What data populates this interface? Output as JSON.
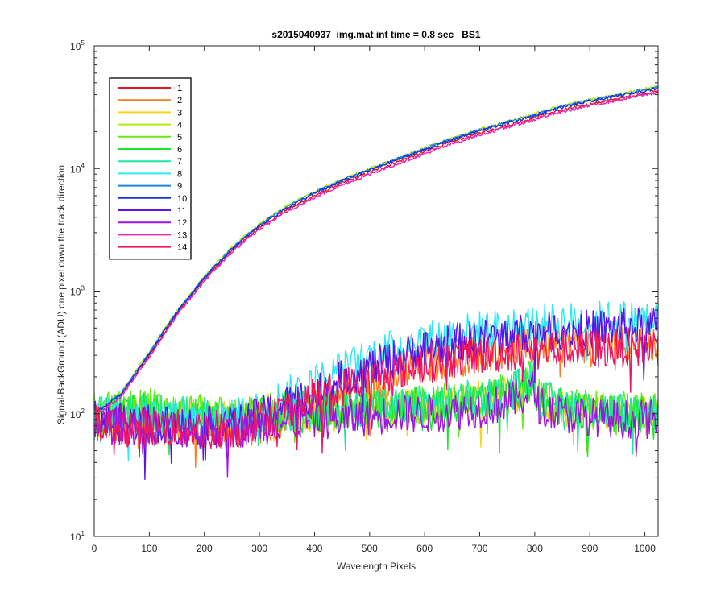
{
  "chart_data": {
    "type": "line",
    "title": "s2015040937_img.mat int time = 0.8 sec   BS1",
    "xlabel": "Wavelength Pixels",
    "ylabel": "Signal-BackGround (ADU) one pixel down the track direction",
    "xlim": [
      0,
      1024
    ],
    "ylim": [
      10,
      100000
    ],
    "yscale": "log",
    "grid": false,
    "legend_position": "top-left",
    "x_ticks": [
      0,
      100,
      200,
      300,
      400,
      500,
      600,
      700,
      800,
      900,
      1000
    ],
    "y_ticks": [
      {
        "value": 10,
        "base": "10",
        "exp": "1"
      },
      {
        "value": 100,
        "base": "10",
        "exp": "2"
      },
      {
        "value": 1000,
        "base": "10",
        "exp": "3"
      },
      {
        "value": 10000,
        "base": "10",
        "exp": "4"
      },
      {
        "value": 100000,
        "base": "10",
        "exp": "5"
      }
    ],
    "x": [
      0,
      50,
      100,
      150,
      200,
      250,
      300,
      350,
      400,
      450,
      500,
      550,
      600,
      650,
      700,
      750,
      780,
      795,
      800,
      810,
      850,
      900,
      950,
      1000,
      1024
    ],
    "series": [
      {
        "name": "1",
        "color": "#e8141e",
        "values": [
          100,
          145,
          300,
          650,
          1250,
          2150,
          3300,
          4600,
          6000,
          7600,
          9300,
          11300,
          13700,
          16500,
          19500,
          22500,
          24500,
          25500,
          26000,
          27000,
          30000,
          33500,
          37000,
          41000,
          42500
        ]
      },
      {
        "name": "2",
        "color": "#ff7f1f",
        "values": [
          95,
          85,
          80,
          78,
          76,
          75,
          80,
          95,
          115,
          140,
          170,
          205,
          245,
          280,
          310,
          335,
          345,
          345,
          350,
          355,
          365,
          370,
          375,
          380,
          380
        ]
      },
      {
        "name": "3",
        "color": "#ffd21a",
        "values": [
          90,
          95,
          100,
          95,
          95,
          90,
          100,
          105,
          100,
          105,
          110,
          110,
          110,
          120,
          130,
          140,
          155,
          185,
          165,
          120,
          110,
          100,
          100,
          95,
          95
        ]
      },
      {
        "name": "4",
        "color": "#b0ea14",
        "values": [
          100,
          150,
          320,
          690,
          1320,
          2280,
          3520,
          4950,
          6450,
          8150,
          10000,
          12100,
          14700,
          17700,
          20900,
          24100,
          26200,
          27300,
          27900,
          29000,
          32500,
          36300,
          40100,
          44500,
          46500
        ]
      },
      {
        "name": "5",
        "color": "#66e81a",
        "values": [
          105,
          110,
          115,
          100,
          100,
          95,
          100,
          105,
          105,
          110,
          115,
          115,
          120,
          125,
          135,
          150,
          165,
          200,
          175,
          130,
          120,
          110,
          105,
          105,
          105
        ]
      },
      {
        "name": "6",
        "color": "#1ee62a",
        "values": [
          95,
          100,
          105,
          95,
          95,
          90,
          95,
          100,
          100,
          105,
          110,
          110,
          115,
          120,
          130,
          145,
          160,
          190,
          170,
          125,
          115,
          105,
          100,
          100,
          100
        ]
      },
      {
        "name": "7",
        "color": "#1ee8a0",
        "values": [
          100,
          100,
          100,
          95,
          95,
          95,
          100,
          105,
          105,
          110,
          115,
          115,
          120,
          125,
          135,
          150,
          170,
          215,
          180,
          130,
          120,
          110,
          105,
          105,
          105
        ]
      },
      {
        "name": "8",
        "color": "#2ee8f0",
        "values": [
          100,
          95,
          90,
          85,
          85,
          90,
          110,
          140,
          180,
          230,
          290,
          350,
          400,
          440,
          480,
          510,
          530,
          540,
          545,
          550,
          560,
          575,
          585,
          590,
          595
        ]
      },
      {
        "name": "9",
        "color": "#1e84d8",
        "values": [
          100,
          148,
          315,
          680,
          1300,
          2240,
          3460,
          4870,
          6350,
          8030,
          9850,
          11950,
          14500,
          17450,
          20600,
          23800,
          25800,
          26900,
          27500,
          28600,
          32000,
          35800,
          39500,
          43800,
          45800
        ]
      },
      {
        "name": "10",
        "color": "#1430e8",
        "values": [
          100,
          146,
          310,
          670,
          1285,
          2210,
          3410,
          4800,
          6260,
          7920,
          9720,
          11800,
          14300,
          17200,
          20300,
          23500,
          25500,
          26600,
          27100,
          28200,
          31600,
          35300,
          39000,
          43300,
          45200
        ]
      },
      {
        "name": "11",
        "color": "#5a14e8",
        "values": [
          90,
          85,
          85,
          80,
          80,
          80,
          95,
          120,
          150,
          190,
          240,
          290,
          340,
          380,
          410,
          440,
          455,
          460,
          465,
          470,
          480,
          490,
          500,
          505,
          510
        ]
      },
      {
        "name": "12",
        "color": "#a014e0",
        "values": [
          80,
          80,
          80,
          75,
          75,
          75,
          80,
          85,
          90,
          90,
          95,
          100,
          100,
          105,
          110,
          125,
          140,
          160,
          145,
          115,
          100,
          95,
          90,
          90,
          90
        ]
      },
      {
        "name": "13",
        "color": "#f01eb4",
        "values": [
          95,
          140,
          290,
          630,
          1210,
          2080,
          3200,
          4460,
          5800,
          7350,
          9000,
          10900,
          13200,
          15900,
          18800,
          21700,
          23600,
          24600,
          25100,
          26100,
          29000,
          32500,
          36000,
          40000,
          41500
        ]
      },
      {
        "name": "14",
        "color": "#f01464",
        "values": [
          80,
          80,
          78,
          75,
          75,
          78,
          90,
          110,
          135,
          165,
          195,
          225,
          255,
          280,
          300,
          315,
          320,
          322,
          325,
          328,
          335,
          340,
          345,
          350,
          350
        ]
      }
    ]
  }
}
